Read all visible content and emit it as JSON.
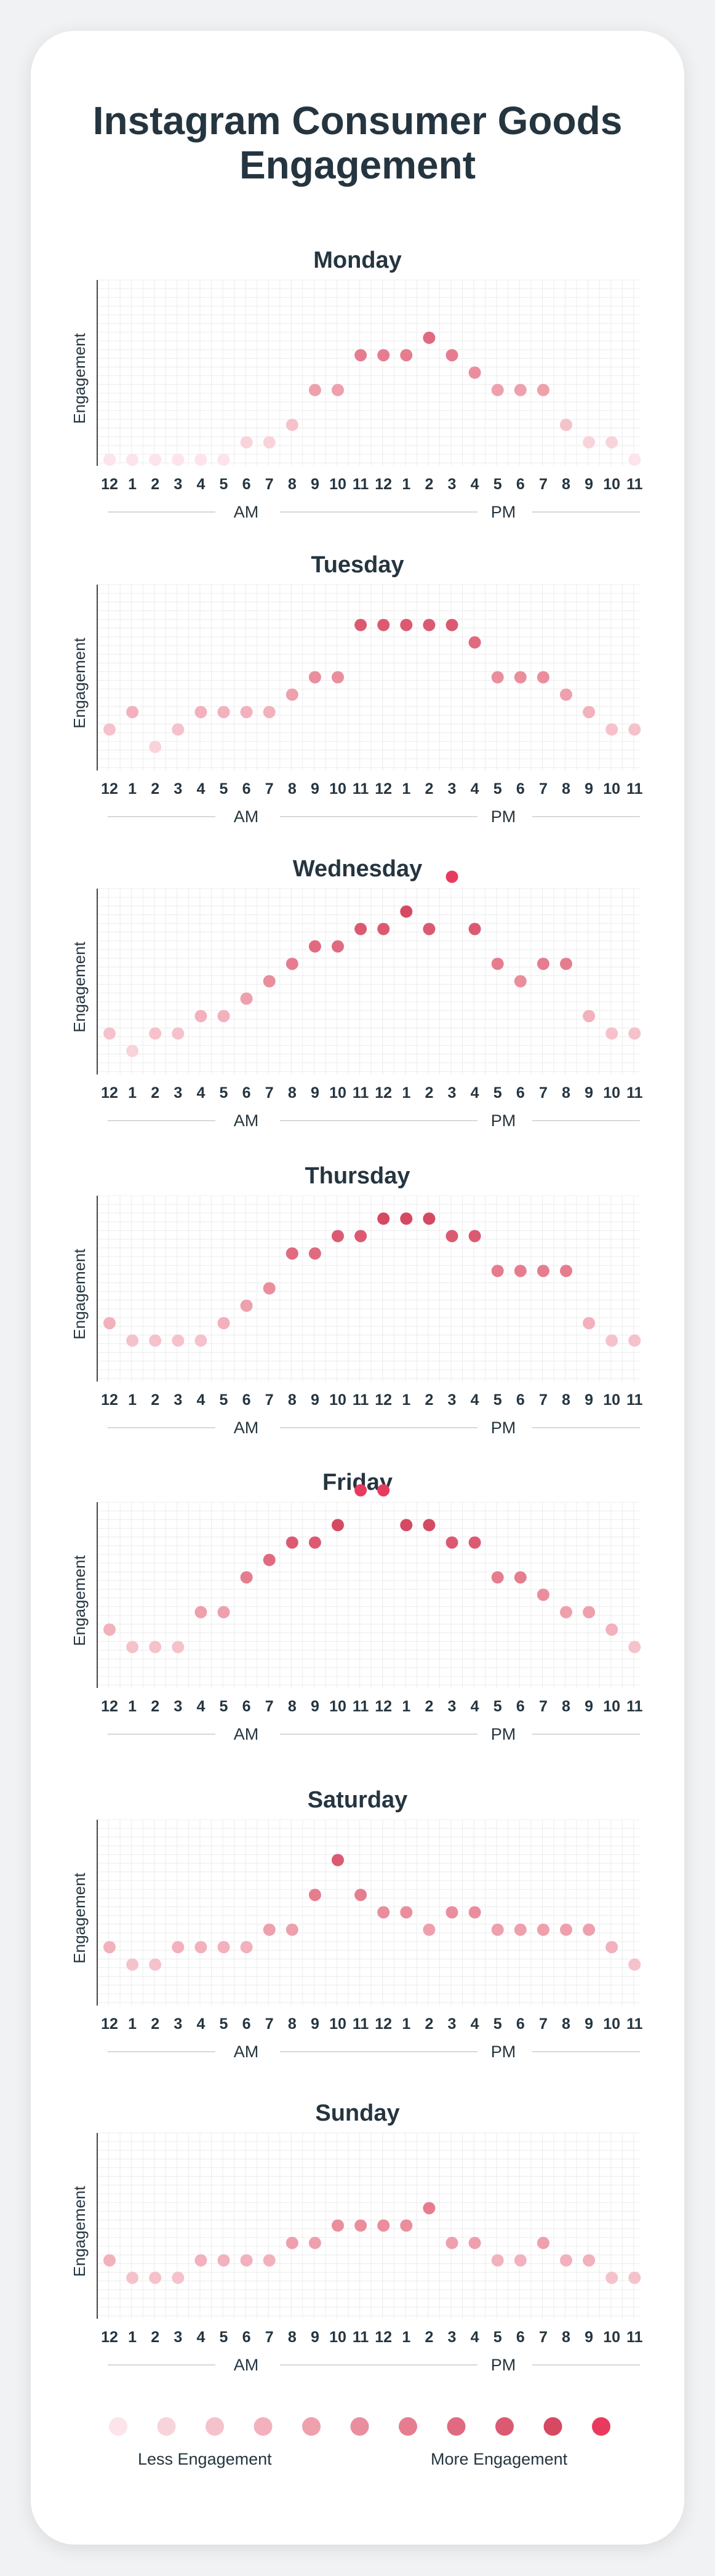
{
  "title": "Instagram Consumer Goods Engagement",
  "chart_data": {
    "type": "scatter",
    "x_tick_labels": [
      "12",
      "1",
      "2",
      "3",
      "4",
      "5",
      "6",
      "7",
      "8",
      "9",
      "10",
      "11",
      "12",
      "1",
      "2",
      "3",
      "4",
      "5",
      "6",
      "7",
      "8",
      "9",
      "10",
      "11"
    ],
    "am_label": "AM",
    "pm_label": "PM",
    "ylabel": "Engagement",
    "grid": true,
    "ylim": [
      0,
      8
    ],
    "colors": {
      "scale": [
        "#fce4ea",
        "#f8d3da",
        "#f5c2cb",
        "#f2b1bc",
        "#eea0ad",
        "#ea8e9e",
        "#e67d8f",
        "#e06b80",
        "#db5a72",
        "#d64963",
        "#e83a5e"
      ],
      "grid": "#ececec",
      "text": "#253540"
    },
    "legend": {
      "less_label": "Less Engagement",
      "more_label": "More Engagement",
      "levels": [
        0,
        1,
        2,
        3,
        4,
        5,
        6,
        7,
        8,
        9,
        10
      ],
      "position": "bottom"
    },
    "days": [
      {
        "name": "Monday",
        "values": [
          0,
          0,
          0,
          0,
          0,
          0,
          1,
          1,
          2,
          4,
          4,
          6,
          6,
          6,
          7,
          6,
          5,
          4,
          4,
          4,
          2,
          1,
          1,
          0
        ]
      },
      {
        "name": "Tuesday",
        "values": [
          2,
          3,
          1,
          2,
          3,
          3,
          3,
          3,
          4,
          5,
          5,
          8,
          8,
          8,
          8,
          8,
          7,
          5,
          5,
          5,
          4,
          3,
          2,
          2
        ]
      },
      {
        "name": "Wednesday",
        "values": [
          2,
          1,
          2,
          2,
          3,
          3,
          4,
          5,
          6,
          7,
          7,
          8,
          8,
          9,
          8,
          11,
          8,
          6,
          5,
          6,
          6,
          3,
          2,
          2
        ]
      },
      {
        "name": "Thursday",
        "values": [
          3,
          2,
          2,
          2,
          2,
          3,
          4,
          5,
          7,
          7,
          8,
          8,
          9,
          9,
          9,
          8,
          8,
          6,
          6,
          6,
          6,
          3,
          2,
          2
        ]
      },
      {
        "name": "Friday",
        "values": [
          3,
          2,
          2,
          2,
          4,
          4,
          6,
          7,
          8,
          8,
          9,
          11,
          11,
          9,
          9,
          8,
          8,
          6,
          6,
          5,
          4,
          4,
          3,
          2
        ]
      },
      {
        "name": "Saturday",
        "values": [
          3,
          2,
          2,
          3,
          3,
          3,
          3,
          4,
          4,
          6,
          8,
          6,
          5,
          5,
          4,
          5,
          5,
          4,
          4,
          4,
          4,
          4,
          3,
          2
        ]
      },
      {
        "name": "Sunday",
        "values": [
          3,
          2,
          2,
          2,
          3,
          3,
          3,
          3,
          4,
          4,
          5,
          5,
          5,
          5,
          6,
          4,
          4,
          3,
          3,
          4,
          3,
          3,
          2,
          2
        ]
      }
    ]
  }
}
